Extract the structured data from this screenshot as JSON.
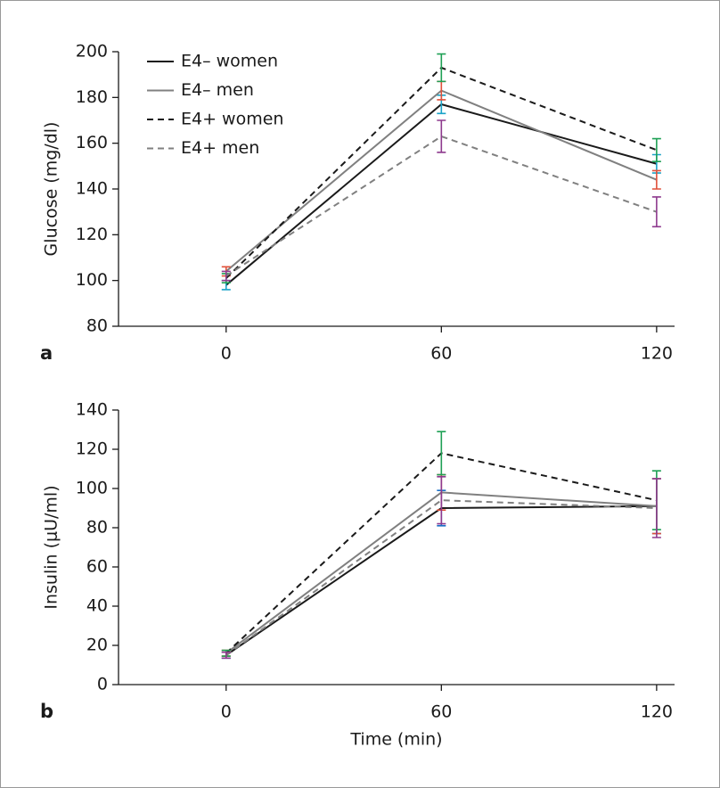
{
  "chart_data": [
    {
      "type": "line",
      "panel_label": "a",
      "ylabel": "Glucose (mg/dl)",
      "x": [
        0,
        60,
        120
      ],
      "xlim": [
        -30,
        125
      ],
      "xticks": [
        0,
        60,
        120
      ],
      "ylim": [
        80,
        200
      ],
      "yticks": [
        80,
        100,
        120,
        140,
        160,
        180,
        200
      ],
      "legend": "upper left",
      "series": [
        {
          "name": "E4– women",
          "color": "#1a1a1a",
          "dashed": false,
          "error_color": "#1aa3c8",
          "values": [
            98,
            177,
            151
          ],
          "errors": [
            2,
            4,
            4
          ]
        },
        {
          "name": "E4– men",
          "color": "#808080",
          "dashed": false,
          "error_color": "#e0503a",
          "values": [
            104,
            183,
            144
          ],
          "errors": [
            2,
            4,
            4
          ]
        },
        {
          "name": "E4+ women",
          "color": "#1a1a1a",
          "dashed": true,
          "error_color": "#1fa055",
          "values": [
            101,
            193,
            157
          ],
          "errors": [
            2,
            6,
            5
          ]
        },
        {
          "name": "E4+ men",
          "color": "#808080",
          "dashed": true,
          "error_color": "#8e3a8e",
          "values": [
            102,
            163,
            130
          ],
          "errors": [
            2,
            7,
            6.5
          ]
        }
      ]
    },
    {
      "type": "line",
      "panel_label": "b",
      "ylabel": "Insulin (μU/ml)",
      "xlabel": "Time (min)",
      "x": [
        0,
        60,
        120
      ],
      "xlim": [
        -30,
        125
      ],
      "xticks": [
        0,
        60,
        120
      ],
      "ylim": [
        0,
        140
      ],
      "yticks": [
        0,
        20,
        40,
        60,
        80,
        100,
        120,
        140
      ],
      "series": [
        {
          "name": "E4– women",
          "color": "#1a1a1a",
          "dashed": false,
          "error_color": "#1a6fc8",
          "values": [
            15,
            90,
            91
          ],
          "errors": [
            1.5,
            9,
            14
          ]
        },
        {
          "name": "E4– men",
          "color": "#808080",
          "dashed": false,
          "error_color": "#e0503a",
          "values": [
            16,
            98,
            91
          ],
          "errors": [
            1.5,
            9,
            14
          ]
        },
        {
          "name": "E4+ women",
          "color": "#1a1a1a",
          "dashed": true,
          "error_color": "#1fa055",
          "values": [
            16,
            118,
            94
          ],
          "errors": [
            1.5,
            11,
            15
          ]
        },
        {
          "name": "E4+ men",
          "color": "#808080",
          "dashed": true,
          "error_color": "#8e3a8e",
          "values": [
            15,
            94,
            90
          ],
          "errors": [
            1.5,
            12,
            15
          ]
        }
      ]
    }
  ]
}
